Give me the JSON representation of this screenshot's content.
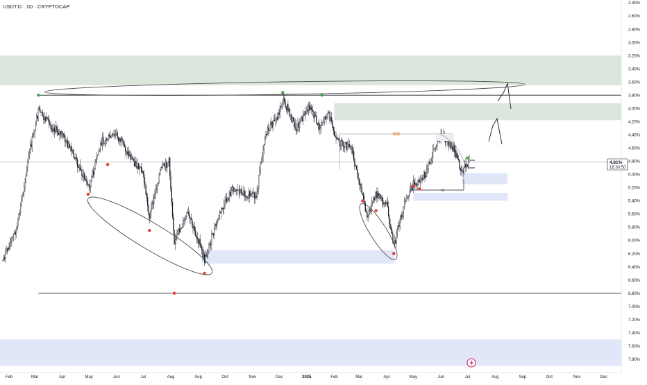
{
  "header": {
    "symbol": "USDT.D · 1D · CRYPTOCAP"
  },
  "current": {
    "value": "4.81%",
    "countdown": "16:30:50"
  },
  "annotations": {
    "liquidity_label": "$$$",
    "x_label": "x"
  },
  "colors": {
    "supply_zone": "#dbe7dc",
    "demand_zone": "#e1e7f8",
    "candle": "#131722",
    "marker_red": "#e53935",
    "marker_green": "#43a047",
    "liquidity_text": "#ef6c00",
    "bolt": "#c2185b"
  },
  "chart_data": {
    "type": "candlestick",
    "title": "USDT.D · 1D · CRYPTOCAP",
    "y_axis": {
      "inverted": true,
      "range": [
        2.4,
        7.9
      ],
      "ticks": [
        "2.40%",
        "2.60%",
        "2.80%",
        "3.00%",
        "3.20%",
        "3.40%",
        "3.60%",
        "3.80%",
        "4.00%",
        "4.20%",
        "4.40%",
        "4.60%",
        "4.80%",
        "5.00%",
        "5.20%",
        "5.40%",
        "5.60%",
        "5.80%",
        "6.00%",
        "6.20%",
        "6.40%",
        "6.60%",
        "6.80%",
        "7.00%",
        "7.20%",
        "7.40%",
        "7.60%",
        "7.80%"
      ]
    },
    "x_axis": {
      "ticks": [
        "Feb",
        "Mar",
        "Apr",
        "May",
        "Jun",
        "Jul",
        "Aug",
        "Sep",
        "Oct",
        "Nov",
        "Dec",
        "2025",
        "Feb",
        "Mar",
        "Apr",
        "May",
        "Jun",
        "Jul",
        "Aug",
        "Sep",
        "Oct",
        "Nov",
        "Dec"
      ]
    },
    "last_price": 4.81,
    "price_path": [
      {
        "date": "2024-01-25",
        "value": 6.3
      },
      {
        "date": "2024-02-10",
        "value": 5.8
      },
      {
        "date": "2024-02-25",
        "value": 4.6
      },
      {
        "date": "2024-03-05",
        "value": 4.05
      },
      {
        "date": "2024-03-18",
        "value": 4.25
      },
      {
        "date": "2024-04-01",
        "value": 4.4
      },
      {
        "date": "2024-04-15",
        "value": 4.75
      },
      {
        "date": "2024-05-01",
        "value": 5.2
      },
      {
        "date": "2024-05-15",
        "value": 4.5
      },
      {
        "date": "2024-06-01",
        "value": 4.4
      },
      {
        "date": "2024-06-15",
        "value": 4.7
      },
      {
        "date": "2024-07-01",
        "value": 5.0
      },
      {
        "date": "2024-07-08",
        "value": 5.65
      },
      {
        "date": "2024-07-20",
        "value": 4.95
      },
      {
        "date": "2024-07-30",
        "value": 4.8
      },
      {
        "date": "2024-08-05",
        "value": 6.0
      },
      {
        "date": "2024-08-20",
        "value": 5.6
      },
      {
        "date": "2024-09-01",
        "value": 6.0
      },
      {
        "date": "2024-09-08",
        "value": 6.3
      },
      {
        "date": "2024-09-25",
        "value": 5.6
      },
      {
        "date": "2024-10-10",
        "value": 5.2
      },
      {
        "date": "2024-10-25",
        "value": 5.3
      },
      {
        "date": "2024-11-05",
        "value": 5.35
      },
      {
        "date": "2024-11-15",
        "value": 4.4
      },
      {
        "date": "2024-11-30",
        "value": 4.1
      },
      {
        "date": "2024-12-05",
        "value": 3.85
      },
      {
        "date": "2024-12-20",
        "value": 4.3
      },
      {
        "date": "2025-01-05",
        "value": 3.95
      },
      {
        "date": "2025-01-15",
        "value": 4.3
      },
      {
        "date": "2025-01-25",
        "value": 4.05
      },
      {
        "date": "2025-02-03",
        "value": 4.5
      },
      {
        "date": "2025-02-20",
        "value": 4.6
      },
      {
        "date": "2025-03-01",
        "value": 5.1
      },
      {
        "date": "2025-03-10",
        "value": 5.65
      },
      {
        "date": "2025-03-20",
        "value": 5.3
      },
      {
        "date": "2025-04-01",
        "value": 5.45
      },
      {
        "date": "2025-04-09",
        "value": 6.1
      },
      {
        "date": "2025-04-20",
        "value": 5.5
      },
      {
        "date": "2025-05-01",
        "value": 5.15
      },
      {
        "date": "2025-05-15",
        "value": 5.0
      },
      {
        "date": "2025-05-25",
        "value": 4.6
      },
      {
        "date": "2025-06-01",
        "value": 4.4
      },
      {
        "date": "2025-06-15",
        "value": 4.6
      },
      {
        "date": "2025-06-25",
        "value": 4.95
      },
      {
        "date": "2025-07-03",
        "value": 4.81
      }
    ],
    "zones": [
      {
        "kind": "supply",
        "from": "2024-01-15",
        "to": "2025-12-31",
        "top": 3.2,
        "bottom": 3.65
      },
      {
        "kind": "supply",
        "from": "2025-02-01",
        "to": "2025-12-31",
        "top": 3.92,
        "bottom": 4.18
      },
      {
        "kind": "demand",
        "from": "2024-09-05",
        "to": "2025-04-10",
        "top": 6.15,
        "bottom": 6.35
      },
      {
        "kind": "demand",
        "from": "2025-06-25",
        "to": "2025-08-15",
        "top": 4.98,
        "bottom": 5.15
      },
      {
        "kind": "demand",
        "from": "2025-05-01",
        "to": "2025-08-15",
        "top": 5.28,
        "bottom": 5.4
      },
      {
        "kind": "demand",
        "from": "2024-01-15",
        "to": "2025-12-31",
        "top": 7.5,
        "bottom": 7.9
      }
    ],
    "levels": [
      {
        "value": 3.8,
        "from": "2024-03-05",
        "to": "2025-12-31"
      },
      {
        "value": 6.8,
        "from": "2024-03-05",
        "to": "2025-12-31"
      },
      {
        "value": 4.81,
        "from": "2024-01-15",
        "to": "2025-12-31"
      }
    ],
    "pivot_markers": [
      {
        "date": "2024-03-05",
        "value": 3.8,
        "type": "high"
      },
      {
        "date": "2024-12-05",
        "value": 3.76,
        "type": "high"
      },
      {
        "date": "2025-01-18",
        "value": 3.8,
        "type": "high"
      },
      {
        "date": "2024-04-30",
        "value": 5.3,
        "type": "low"
      },
      {
        "date": "2024-05-22",
        "value": 4.85,
        "type": "low"
      },
      {
        "date": "2024-07-08",
        "value": 5.85,
        "type": "low"
      },
      {
        "date": "2024-08-05",
        "value": 6.8,
        "type": "low"
      },
      {
        "date": "2024-09-08",
        "value": 6.5,
        "type": "low"
      },
      {
        "date": "2025-03-05",
        "value": 5.4,
        "type": "low"
      },
      {
        "date": "2025-03-20",
        "value": 5.55,
        "type": "low"
      },
      {
        "date": "2025-04-09",
        "value": 6.2,
        "type": "low"
      },
      {
        "date": "2025-05-01",
        "value": 5.18,
        "type": "low"
      },
      {
        "date": "2025-05-08",
        "value": 5.22,
        "type": "low"
      },
      {
        "date": "2025-07-01",
        "value": 4.75,
        "type": "high"
      }
    ],
    "legend": "none",
    "grid": false
  }
}
